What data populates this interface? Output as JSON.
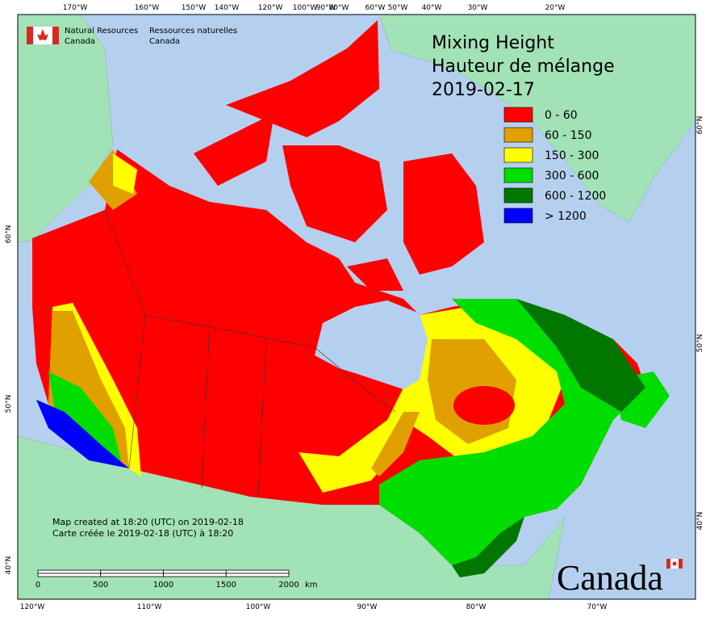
{
  "header": {
    "agency_en": [
      "Natural Resources",
      "Canada"
    ],
    "agency_fr": [
      "Ressources naturelles",
      "Canada"
    ]
  },
  "title": [
    "Mixing Height",
    "Hauteur de mélange",
    "2019-02-17"
  ],
  "legend": [
    {
      "label": "0 - 60",
      "color": "#ff0000"
    },
    {
      "label": "60 - 150",
      "color": "#e0a000"
    },
    {
      "label": "150 - 300",
      "color": "#ffff00"
    },
    {
      "label": "300 - 600",
      "color": "#00dd00"
    },
    {
      "label": "600 - 1200",
      "color": "#007700"
    },
    {
      "label": "> 1200",
      "color": "#0000ff"
    }
  ],
  "top_longitudes": [
    "170°W",
    "160°W",
    "150°W",
    "140°W",
    "120°W",
    "100°W",
    "90°W",
    "80°W",
    "60°W",
    "50°W",
    "40°W",
    "30°W",
    "20°W"
  ],
  "bottom_longitudes": [
    "120°W",
    "110°W",
    "100°W",
    "90°W",
    "80°W",
    "70°W"
  ],
  "left_latitudes": [
    "60°N",
    "50°N",
    "40°N"
  ],
  "right_latitudes": [
    "60°N",
    "50°N",
    "40°N"
  ],
  "footnote": [
    "Map created at 18:20 (UTC) on 2019-02-18",
    "Carte créée le 2019-02-18 (UTC) à 18:20"
  ],
  "scale": {
    "ticks": [
      "0",
      "500",
      "1000",
      "1500",
      "2000"
    ],
    "unit": "km"
  },
  "wordmark": "Canada"
}
